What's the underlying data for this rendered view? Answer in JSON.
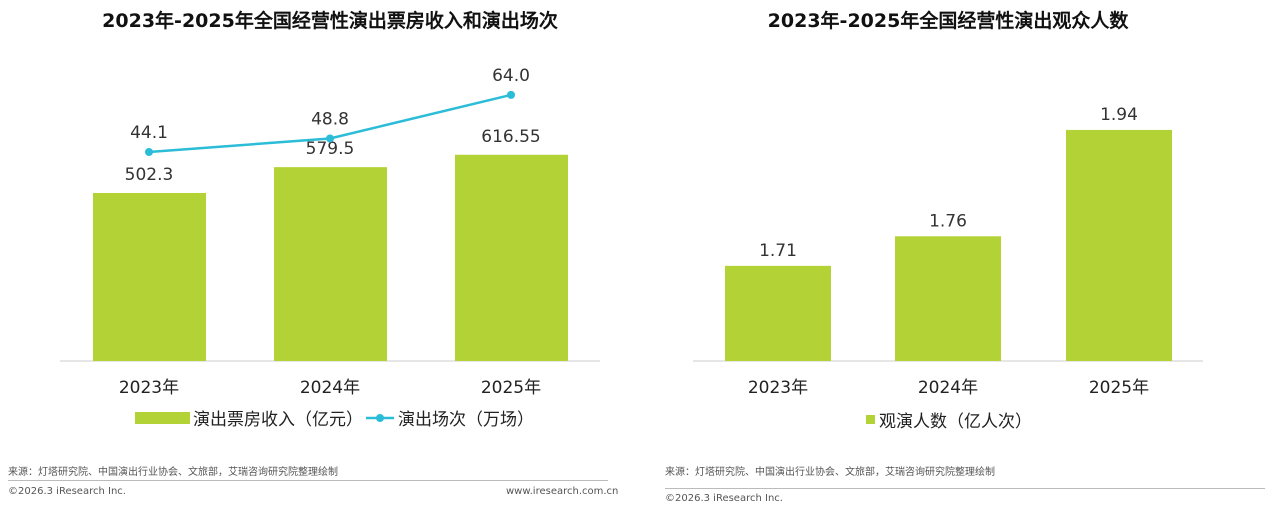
{
  "chart_data": [
    {
      "type": "bar+line",
      "title": "2023年-2025年全国经营性演出票房收入和演出场次",
      "categories": [
        "2023年",
        "2024年",
        "2025年"
      ],
      "series": [
        {
          "name": "演出票房收入（亿元）",
          "type": "bar",
          "color": "#b2d235",
          "values": [
            502.3,
            579.5,
            616.55
          ],
          "labels": [
            "502.3",
            "579.5",
            "616.55"
          ]
        },
        {
          "name": "演出场次（万场）",
          "type": "line",
          "color": "#2bbcd8",
          "values": [
            44.1,
            48.8,
            64.0
          ],
          "labels": [
            "44.1",
            "48.8",
            "64.0"
          ]
        }
      ],
      "legend": "bottom",
      "grid": false
    },
    {
      "type": "bar",
      "title": "2023年-2025年全国经营性演出观众人数",
      "categories": [
        "2023年",
        "2024年",
        "2025年"
      ],
      "series": [
        {
          "name": "观演人数（亿人次）",
          "color": "#b2d235",
          "values": [
            1.71,
            1.76,
            1.94
          ],
          "labels": [
            "1.71",
            "1.76",
            "1.94"
          ]
        }
      ],
      "legend": "bottom",
      "grid": false
    }
  ],
  "footer": {
    "left_source": "来源：灯塔研究院、中国演出行业协会、文旅部，艾瑞咨询研究院整理绘制",
    "left_copyright": "©2026.3 iResearch Inc.",
    "left_url": "www.iresearch.com.cn",
    "right_source": "来源：灯塔研究院、中国演出行业协会、文旅部，艾瑞咨询研究院整理绘制",
    "right_copyright": "©2026.3 iResearch Inc."
  }
}
